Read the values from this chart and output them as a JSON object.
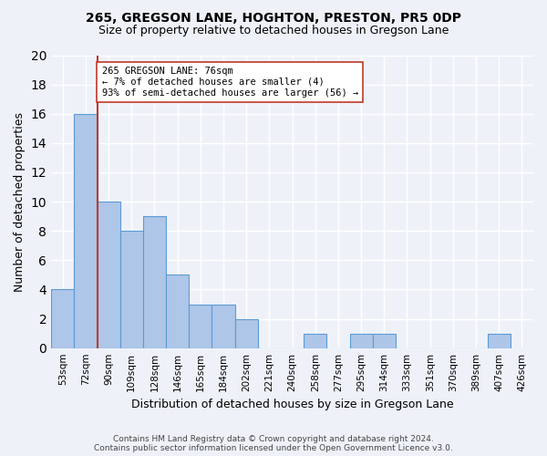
{
  "title1": "265, GREGSON LANE, HOGHTON, PRESTON, PR5 0DP",
  "title2": "Size of property relative to detached houses in Gregson Lane",
  "xlabel": "Distribution of detached houses by size in Gregson Lane",
  "ylabel": "Number of detached properties",
  "bins": [
    "53sqm",
    "72sqm",
    "90sqm",
    "109sqm",
    "128sqm",
    "146sqm",
    "165sqm",
    "184sqm",
    "202sqm",
    "221sqm",
    "240sqm",
    "258sqm",
    "277sqm",
    "295sqm",
    "314sqm",
    "333sqm",
    "351sqm",
    "370sqm",
    "389sqm",
    "407sqm",
    "426sqm"
  ],
  "values": [
    4,
    16,
    10,
    8,
    9,
    5,
    3,
    3,
    2,
    0,
    0,
    1,
    0,
    1,
    1,
    0,
    0,
    0,
    0,
    1,
    0
  ],
  "bar_color": "#aec6e8",
  "bar_edge_color": "#5b9bd5",
  "vline_x": 1.5,
  "vline_color": "#c0392b",
  "annotation_text": "265 GREGSON LANE: 76sqm\n← 7% of detached houses are smaller (4)\n93% of semi-detached houses are larger (56) →",
  "annotation_box_color": "#ffffff",
  "annotation_box_edge_color": "#c0392b",
  "ylim": [
    0,
    20
  ],
  "yticks": [
    0,
    2,
    4,
    6,
    8,
    10,
    12,
    14,
    16,
    18,
    20
  ],
  "footer1": "Contains HM Land Registry data © Crown copyright and database right 2024.",
  "footer2": "Contains public sector information licensed under the Open Government Licence v3.0.",
  "bg_color": "#eef2f8",
  "grid_color": "#ffffff"
}
